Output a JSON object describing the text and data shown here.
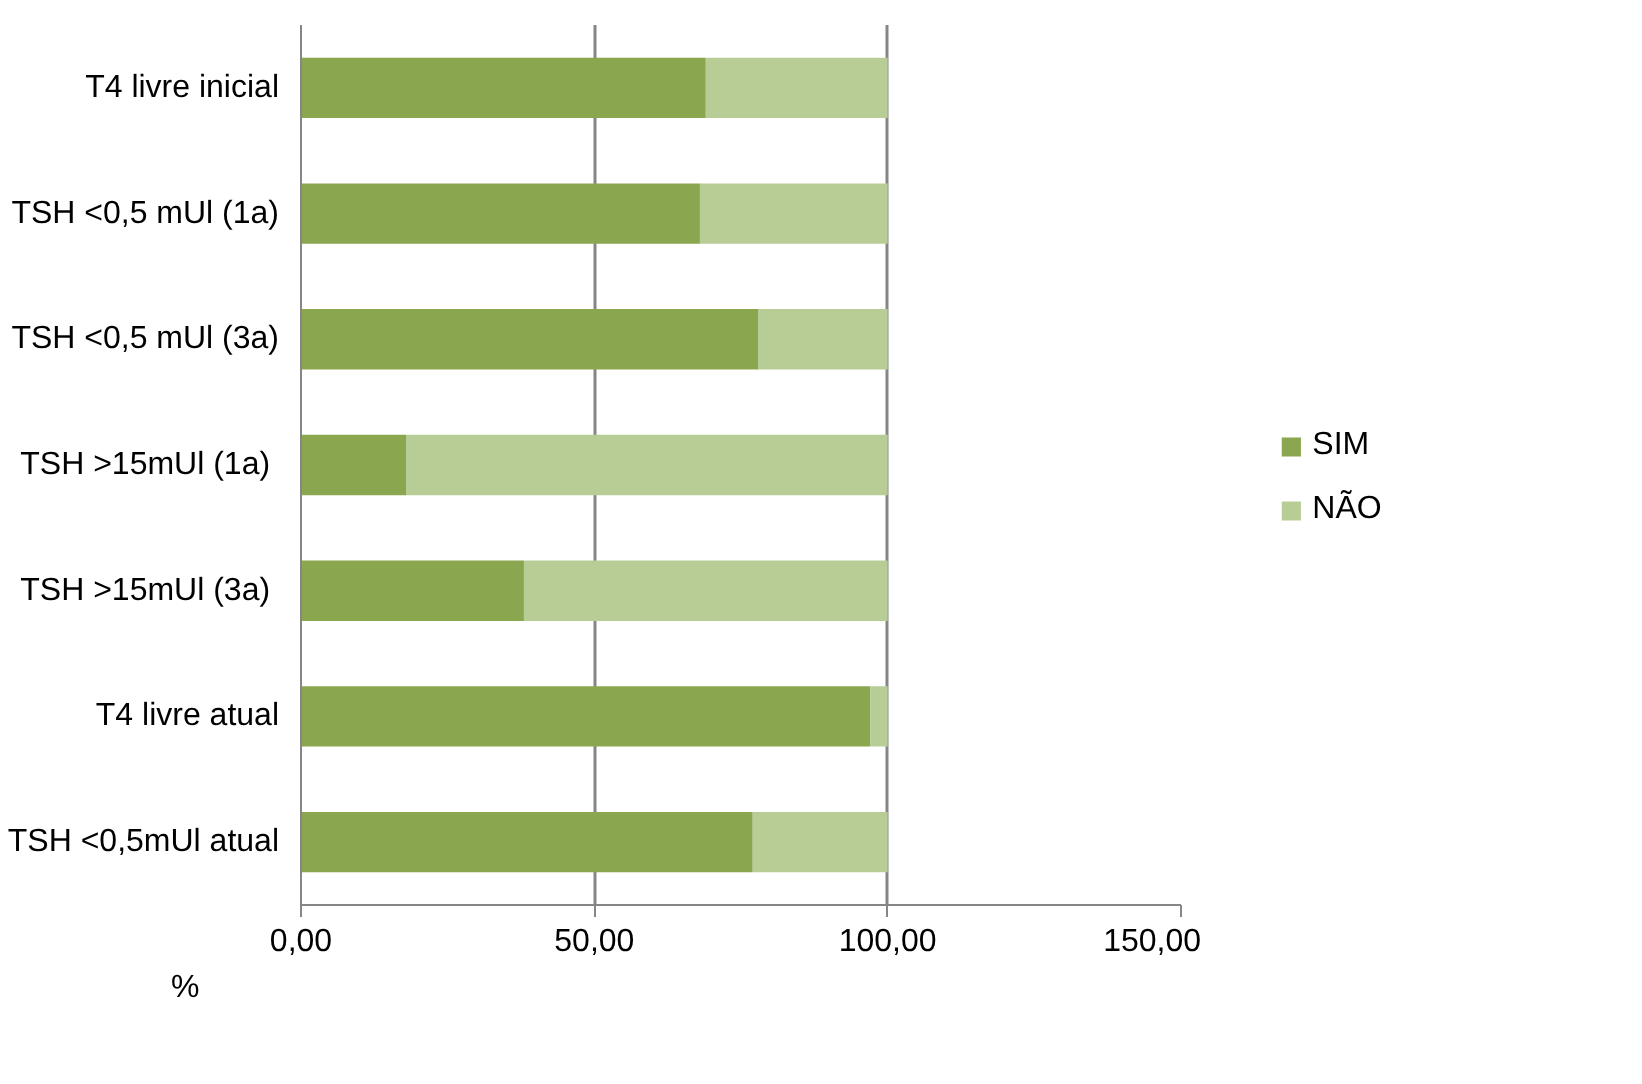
{
  "chart_data": {
    "type": "bar",
    "orientation": "horizontal",
    "stacked": true,
    "xlabel": "%",
    "categories": [
      "T4 livre inicial",
      "TSH <0,5 mUl (1a)",
      "TSH <0,5 mUl (3a)",
      "TSH  >15mUl (1a)",
      "TSH  >15mUl (3a)",
      "T4 livre atual",
      "TSH <0,5mUl atual"
    ],
    "series": [
      {
        "name": "SIM",
        "color": "#8aa64e",
        "values": [
          69,
          68,
          78,
          18,
          38,
          97,
          77
        ]
      },
      {
        "name": "NÃO",
        "color": "#b8cd96",
        "values": [
          31,
          32,
          22,
          82,
          62,
          3,
          23
        ]
      }
    ],
    "xlim": [
      0,
      150
    ],
    "xticks": [
      {
        "value": 0,
        "label": "0,00"
      },
      {
        "value": 50,
        "label": "50,00"
      },
      {
        "value": 100,
        "label": "100,00"
      },
      {
        "value": 150,
        "label": "150,00"
      }
    ],
    "grid": "x",
    "legend": "right"
  }
}
